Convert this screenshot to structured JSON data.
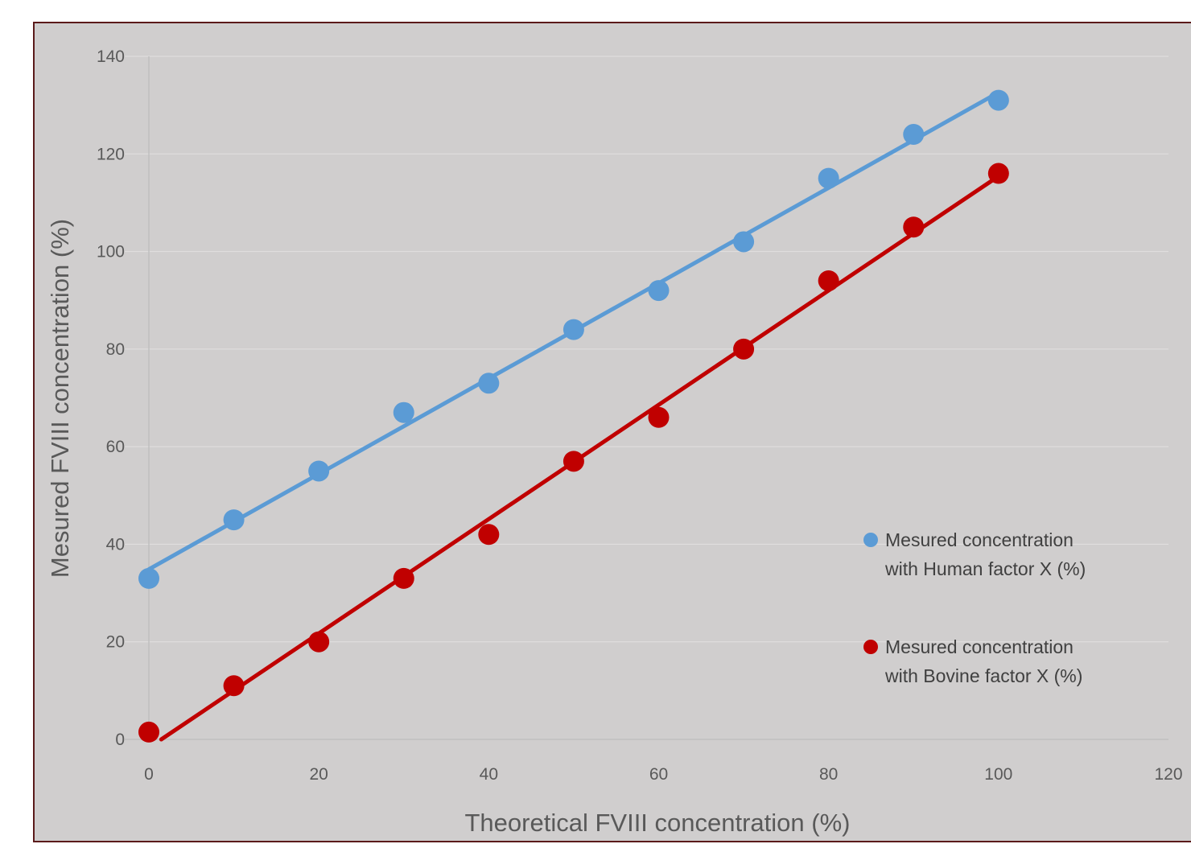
{
  "chart_data": {
    "type": "scatter",
    "xlabel": "Theoretical FVIII concentration  (%)",
    "ylabel": "Mesured FVIII concentration (%)",
    "xlim": [
      0,
      120
    ],
    "ylim": [
      0,
      140
    ],
    "xticks": [
      0,
      20,
      40,
      60,
      80,
      100,
      120
    ],
    "yticks": [
      0,
      20,
      40,
      60,
      80,
      100,
      120,
      140
    ],
    "grid": "horizontal",
    "legend_position": "right",
    "series": [
      {
        "name": "Mesured concentration with Human factor X (%)",
        "legend_lines": [
          "Mesured concentration",
          "with Human factor X (%)"
        ],
        "color": "#5b9bd5",
        "trendline": "linear",
        "x": [
          0,
          10,
          20,
          30,
          40,
          50,
          60,
          70,
          80,
          90,
          100
        ],
        "y": [
          33,
          45,
          55,
          67,
          73,
          84,
          92,
          102,
          115,
          124,
          131
        ]
      },
      {
        "name": "Mesured concentration with Bovine factor X (%)",
        "legend_lines": [
          "Mesured concentration",
          "with Bovine factor X (%)"
        ],
        "color": "#c00000",
        "trendline": "linear",
        "x": [
          0,
          10,
          20,
          30,
          40,
          50,
          60,
          70,
          80,
          90,
          100
        ],
        "y": [
          1.5,
          11,
          20,
          33,
          42,
          57,
          66,
          80,
          94,
          105,
          116
        ]
      }
    ]
  }
}
